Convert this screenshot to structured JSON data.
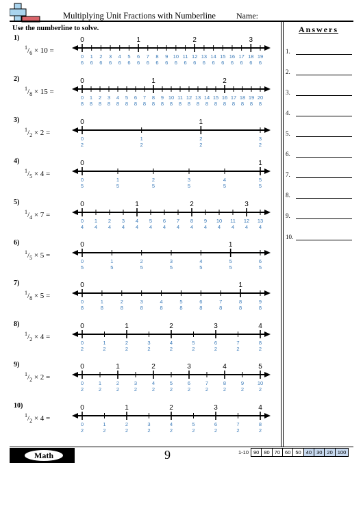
{
  "header": {
    "title": "Multiplying Unit Fractions with Numberline",
    "name_label": "Name:"
  },
  "instructions": "Use the numberline to solve.",
  "answers": {
    "title": "Answers",
    "numbers": [
      "1.",
      "2.",
      "3.",
      "4.",
      "5.",
      "6.",
      "7.",
      "8.",
      "9.",
      "10."
    ]
  },
  "colors": {
    "tick_label": "#3a7ab8",
    "highlight": "#c8daf0"
  },
  "problems": [
    {
      "num": "1)",
      "numerator": "1",
      "denominator": "6",
      "multiplier": "10",
      "op": "×",
      "eq": "=",
      "labels": [
        "0",
        "1",
        "2",
        "3",
        "4",
        "5",
        "6",
        "7",
        "8",
        "9",
        "10",
        "11",
        "12",
        "13",
        "14",
        "15",
        "16",
        "17",
        "18",
        "19"
      ],
      "den": "6",
      "wholes": [
        {
          "at": 0,
          "text": "0"
        },
        {
          "at": 6,
          "text": "1"
        },
        {
          "at": 12,
          "text": "2"
        },
        {
          "at": 18,
          "text": "3"
        }
      ]
    },
    {
      "num": "2)",
      "numerator": "1",
      "denominator": "8",
      "multiplier": "15",
      "op": "×",
      "eq": "=",
      "labels": [
        "0",
        "1",
        "2",
        "3",
        "4",
        "5",
        "6",
        "7",
        "8",
        "9",
        "10",
        "11",
        "12",
        "13",
        "14",
        "15",
        "16",
        "17",
        "18",
        "19",
        "20"
      ],
      "den": "8",
      "wholes": [
        {
          "at": 0,
          "text": "0"
        },
        {
          "at": 8,
          "text": "1"
        },
        {
          "at": 16,
          "text": "2"
        }
      ]
    },
    {
      "num": "3)",
      "numerator": "1",
      "denominator": "2",
      "multiplier": "2",
      "op": "×",
      "eq": "=",
      "labels": [
        "0",
        "1",
        "2",
        "3"
      ],
      "den": "2",
      "wholes": [
        {
          "at": 0,
          "text": "0"
        },
        {
          "at": 2,
          "text": "1"
        }
      ]
    },
    {
      "num": "4)",
      "numerator": "1",
      "denominator": "5",
      "multiplier": "4",
      "op": "×",
      "eq": "=",
      "labels": [
        "0",
        "1",
        "2",
        "3",
        "4",
        "5"
      ],
      "den": "5",
      "wholes": [
        {
          "at": 0,
          "text": "0"
        },
        {
          "at": 5,
          "text": "1"
        }
      ]
    },
    {
      "num": "5)",
      "numerator": "1",
      "denominator": "4",
      "multiplier": "7",
      "op": "×",
      "eq": "=",
      "labels": [
        "0",
        "1",
        "2",
        "3",
        "4",
        "5",
        "6",
        "7",
        "8",
        "9",
        "10",
        "11",
        "12",
        "13"
      ],
      "den": "4",
      "wholes": [
        {
          "at": 0,
          "text": "0"
        },
        {
          "at": 4,
          "text": "1"
        },
        {
          "at": 8,
          "text": "2"
        },
        {
          "at": 12,
          "text": "3"
        }
      ]
    },
    {
      "num": "6)",
      "numerator": "1",
      "denominator": "5",
      "multiplier": "5",
      "op": "×",
      "eq": "=",
      "labels": [
        "0",
        "1",
        "2",
        "3",
        "4",
        "5",
        "6"
      ],
      "den": "5",
      "wholes": [
        {
          "at": 0,
          "text": "0"
        },
        {
          "at": 5,
          "text": "1"
        }
      ]
    },
    {
      "num": "7)",
      "numerator": "1",
      "denominator": "8",
      "multiplier": "5",
      "op": "×",
      "eq": "=",
      "labels": [
        "0",
        "1",
        "2",
        "3",
        "4",
        "5",
        "6",
        "7",
        "8",
        "9"
      ],
      "den": "8",
      "wholes": [
        {
          "at": 0,
          "text": "0"
        },
        {
          "at": 8,
          "text": "1"
        }
      ]
    },
    {
      "num": "8)",
      "numerator": "1",
      "denominator": "2",
      "multiplier": "4",
      "op": "×",
      "eq": "=",
      "labels": [
        "0",
        "1",
        "2",
        "3",
        "4",
        "5",
        "6",
        "7",
        "8"
      ],
      "den": "2",
      "wholes": [
        {
          "at": 0,
          "text": "0"
        },
        {
          "at": 2,
          "text": "1"
        },
        {
          "at": 4,
          "text": "2"
        },
        {
          "at": 6,
          "text": "3"
        },
        {
          "at": 8,
          "text": "4"
        }
      ]
    },
    {
      "num": "9)",
      "numerator": "1",
      "denominator": "2",
      "multiplier": "2",
      "op": "×",
      "eq": "=",
      "labels": [
        "0",
        "1",
        "2",
        "3",
        "4",
        "5",
        "6",
        "7",
        "8",
        "9",
        "10"
      ],
      "den": "2",
      "wholes": [
        {
          "at": 0,
          "text": "0"
        },
        {
          "at": 2,
          "text": "1"
        },
        {
          "at": 4,
          "text": "2"
        },
        {
          "at": 6,
          "text": "3"
        },
        {
          "at": 8,
          "text": "4"
        },
        {
          "at": 10,
          "text": "5"
        }
      ]
    },
    {
      "num": "10)",
      "numerator": "1",
      "denominator": "2",
      "multiplier": "4",
      "op": "×",
      "eq": "=",
      "labels": [
        "0",
        "1",
        "2",
        "3",
        "4",
        "5",
        "6",
        "7",
        "8"
      ],
      "den": "2",
      "wholes": [
        {
          "at": 0,
          "text": "0"
        },
        {
          "at": 2,
          "text": "1"
        },
        {
          "at": 4,
          "text": "2"
        },
        {
          "at": 6,
          "text": "3"
        },
        {
          "at": 8,
          "text": "4"
        }
      ]
    }
  ],
  "footer": {
    "subject": "Math",
    "page": "9",
    "score_range": "1-10",
    "scores": [
      "90",
      "80",
      "70",
      "60",
      "50",
      "40",
      "30",
      "20",
      "100"
    ],
    "highlighted_scores": [
      "40",
      "30",
      "20",
      "100"
    ]
  }
}
